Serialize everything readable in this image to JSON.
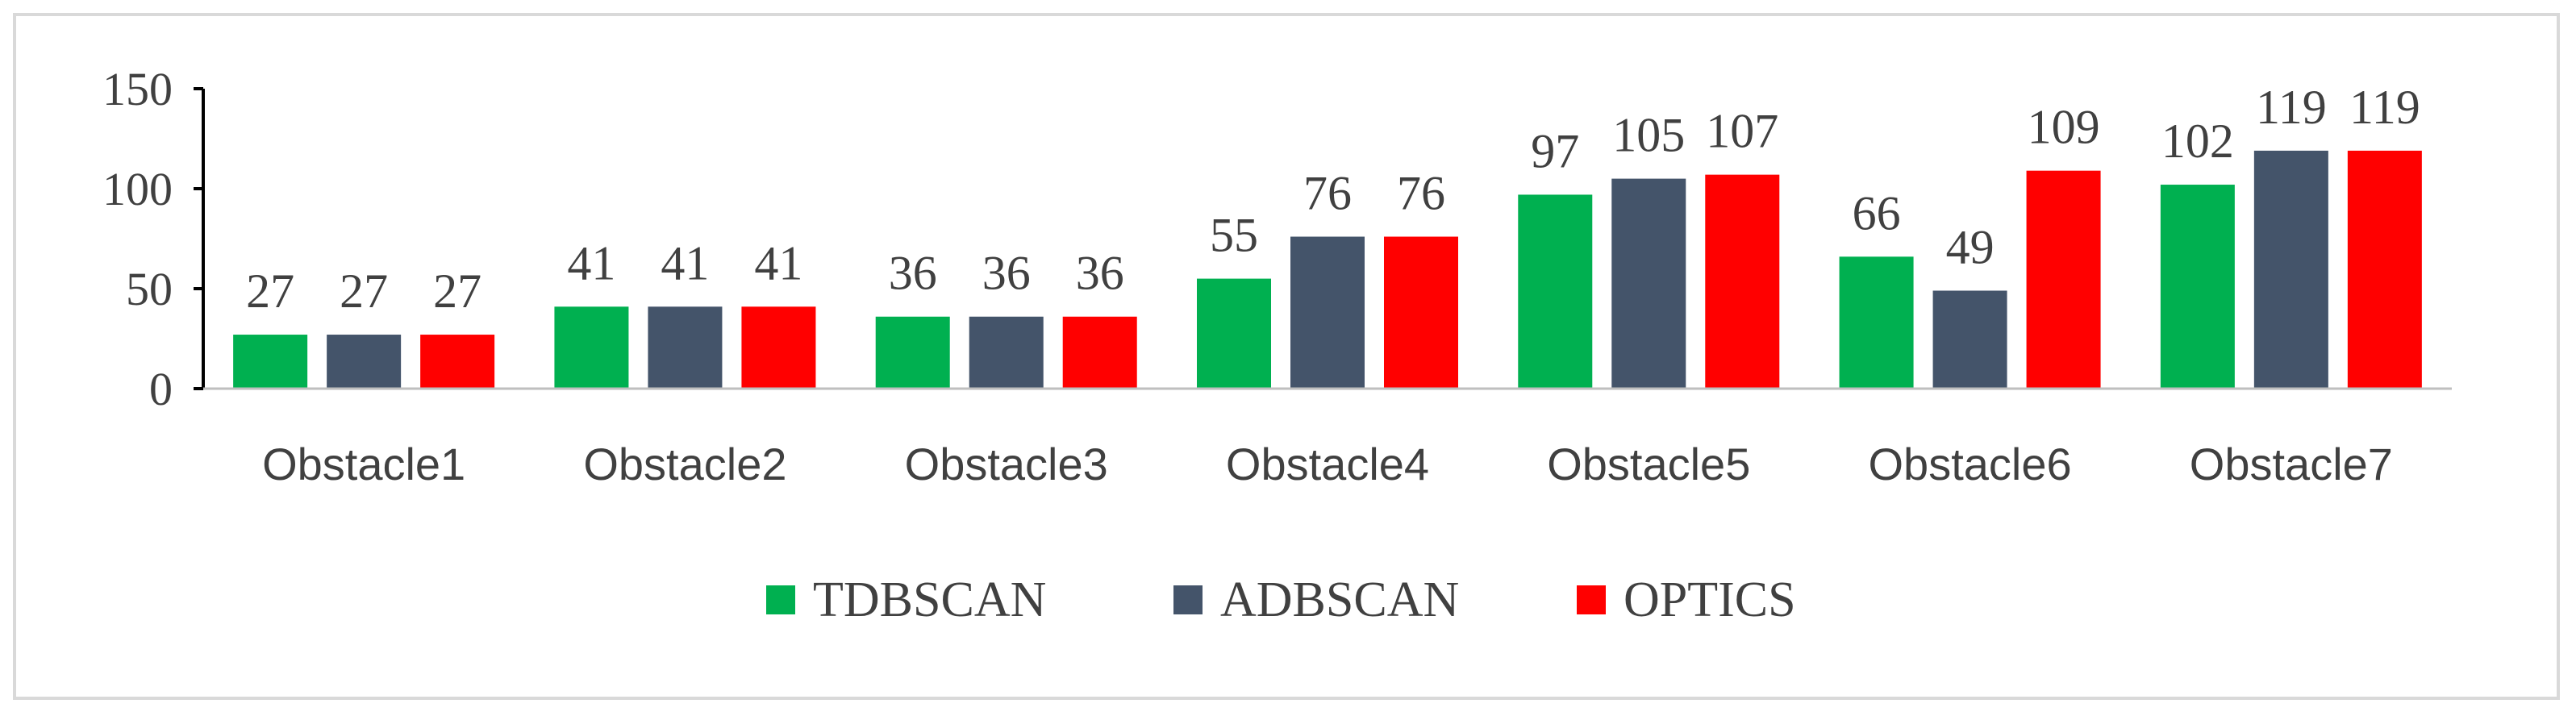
{
  "chart_data": {
    "type": "bar",
    "title": "",
    "xlabel": "",
    "ylabel": "",
    "categories": [
      "Obstacle1",
      "Obstacle2",
      "Obstacle3",
      "Obstacle4",
      "Obstacle5",
      "Obstacle6",
      "Obstacle7"
    ],
    "series": [
      {
        "name": "TDBSCAN",
        "color": "#00b050",
        "values": [
          27,
          41,
          36,
          55,
          97,
          66,
          102
        ]
      },
      {
        "name": "ADBSCAN",
        "color": "#44546a",
        "values": [
          27,
          41,
          36,
          76,
          105,
          49,
          119
        ]
      },
      {
        "name": "OPTICS",
        "color": "#ff0000",
        "values": [
          27,
          41,
          36,
          76,
          107,
          109,
          119
        ]
      }
    ],
    "ylim": [
      0,
      150
    ],
    "yticks": [
      "0",
      "50",
      "100",
      "150"
    ],
    "data_labels": true,
    "grid": false,
    "legend_position": "bottom"
  }
}
